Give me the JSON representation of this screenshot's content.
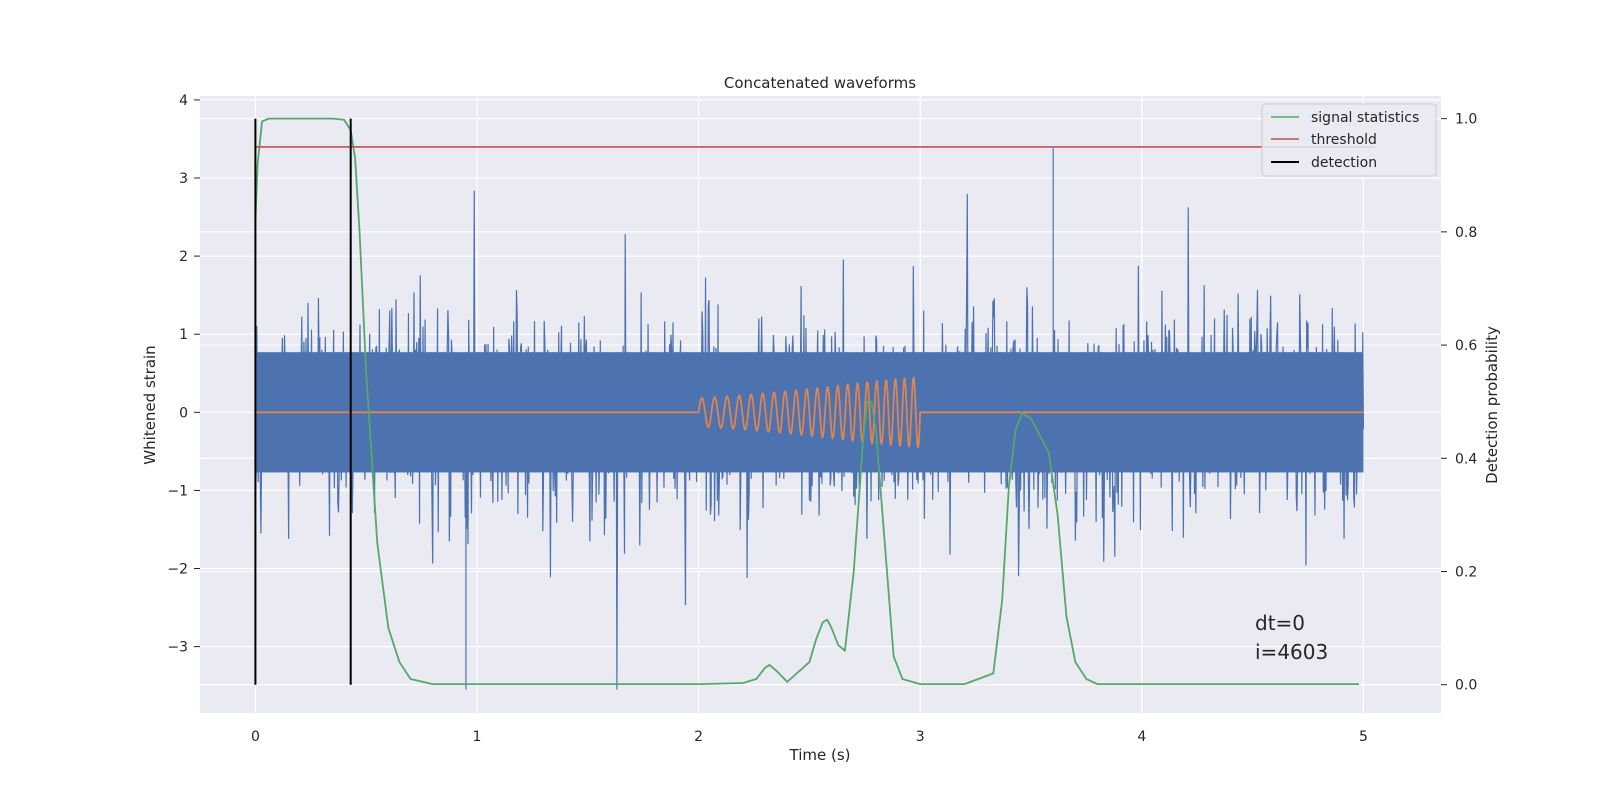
{
  "chart_data": {
    "type": "line",
    "title": "Concatenated waveforms",
    "xlabel": "Time (s)",
    "ylabel": "Whitened strain",
    "ylabel_right": "Detection probability",
    "xlim": [
      -0.25,
      5.35
    ],
    "ylim": [
      -3.85,
      4.05
    ],
    "ylim_right": [
      -0.05,
      1.04
    ],
    "x_ticks": [
      0,
      1,
      2,
      3,
      4,
      5
    ],
    "y_ticks": [
      -3,
      -2,
      -1,
      0,
      1,
      2,
      3,
      4
    ],
    "y_ticks_right": [
      0.0,
      0.2,
      0.4,
      0.6,
      0.8,
      1.0
    ],
    "x_tick_labels": [
      "0",
      "1",
      "2",
      "3",
      "4",
      "5"
    ],
    "y_tick_labels": [
      "−3",
      "−2",
      "−1",
      "0",
      "1",
      "2",
      "3",
      "4"
    ],
    "y_tick_labels_right": [
      "0.0",
      "0.2",
      "0.4",
      "0.6",
      "0.8",
      "1.0"
    ],
    "grid": true,
    "legend_position": "top-right",
    "colors": {
      "noise": "#4c72b0",
      "injection": "#dd8452",
      "statistics": "#55a868",
      "threshold": "#c44e52",
      "detection": "#000000",
      "plot_bg": "#eaeaf2",
      "grid": "#ffffff"
    },
    "series": [
      {
        "name": "",
        "axis": "left",
        "role": "noise",
        "x_range": [
          0,
          5
        ],
        "envelope_typical": [
          -1.4,
          1.4
        ],
        "min": -3.55,
        "max": 3.38
      },
      {
        "name": "",
        "axis": "left",
        "role": "injection",
        "x": [
          0.0,
          2.0,
          2.0,
          2.2,
          2.4,
          2.6,
          2.8,
          3.0,
          3.0,
          5.0
        ],
        "amplitude": [
          0.0,
          0.0,
          0.18,
          0.22,
          0.27,
          0.33,
          0.4,
          0.45,
          0.0,
          0.0
        ]
      },
      {
        "name": "signal statistics",
        "axis": "right",
        "x": [
          0.0,
          0.01,
          0.03,
          0.06,
          0.1,
          0.2,
          0.35,
          0.4,
          0.43,
          0.45,
          0.47,
          0.5,
          0.55,
          0.6,
          0.65,
          0.7,
          0.8,
          1.0,
          1.5,
          2.0,
          2.2,
          2.26,
          2.3,
          2.32,
          2.35,
          2.4,
          2.5,
          2.53,
          2.56,
          2.58,
          2.6,
          2.63,
          2.66,
          2.7,
          2.74,
          2.76,
          2.78,
          2.8,
          2.84,
          2.88,
          2.92,
          3.0,
          3.2,
          3.33,
          3.37,
          3.4,
          3.43,
          3.46,
          3.5,
          3.54,
          3.58,
          3.62,
          3.66,
          3.7,
          3.75,
          3.8,
          4.0,
          4.5,
          4.98
        ],
        "y": [
          0.82,
          0.92,
          0.995,
          1.0,
          1.0,
          1.0,
          1.0,
          0.998,
          0.98,
          0.93,
          0.8,
          0.55,
          0.25,
          0.1,
          0.04,
          0.01,
          0.001,
          0.001,
          0.001,
          0.001,
          0.003,
          0.01,
          0.03,
          0.035,
          0.025,
          0.005,
          0.04,
          0.08,
          0.11,
          0.115,
          0.1,
          0.07,
          0.06,
          0.2,
          0.42,
          0.5,
          0.5,
          0.45,
          0.25,
          0.05,
          0.01,
          0.001,
          0.001,
          0.02,
          0.15,
          0.35,
          0.45,
          0.48,
          0.47,
          0.44,
          0.41,
          0.3,
          0.12,
          0.04,
          0.01,
          0.001,
          0.001,
          0.001,
          0.001
        ]
      },
      {
        "name": "threshold",
        "axis": "right",
        "x": [
          0,
          5.05
        ],
        "y": [
          0.95,
          0.95
        ]
      },
      {
        "name": "detection",
        "axis": "right",
        "type": "vlines",
        "x": [
          0.0,
          0.43
        ],
        "ymin": 0.0,
        "ymax": 1.0
      }
    ],
    "annotations": [
      "dt=0",
      "i=4603"
    ],
    "annotation_position": [
      4.5,
      -3.0
    ]
  }
}
